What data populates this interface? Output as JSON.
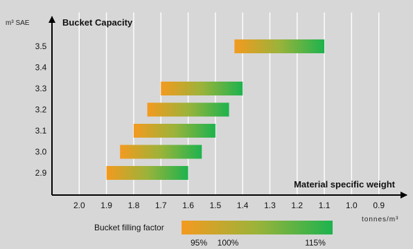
{
  "chart_data": {
    "type": "bar",
    "orientation": "horizontal-range",
    "title": "Bucket Capacity",
    "ylabel": "m³ SAE",
    "xlabel": "Material specific weight",
    "x_unit": "tonnes/m³",
    "x_reversed": true,
    "xlim": [
      2.1,
      0.8
    ],
    "x_ticks": [
      {
        "value": 2.0,
        "label": "2.0"
      },
      {
        "value": 1.9,
        "label": "1.9"
      },
      {
        "value": 1.8,
        "label": "1.8"
      },
      {
        "value": 1.7,
        "label": "1.7"
      },
      {
        "value": 1.6,
        "label": "1.6"
      },
      {
        "value": 1.5,
        "label": "1.5"
      },
      {
        "value": 1.4,
        "label": "1.4"
      },
      {
        "value": 1.3,
        "label": "1.3"
      },
      {
        "value": 1.2,
        "label": "1.2"
      },
      {
        "value": 1.1,
        "label": "1.1"
      },
      {
        "value": 1.0,
        "label": "1.0"
      },
      {
        "value": 0.9,
        "label": "0.9"
      }
    ],
    "grid": "vertical",
    "categories": [
      "3.5",
      "3.4",
      "3.3",
      "3.2",
      "3.1",
      "3.0",
      "2.9"
    ],
    "ranges": [
      {
        "capacity": "3.5",
        "from": 1.43,
        "to": 1.1
      },
      {
        "capacity": "3.4",
        "from": null,
        "to": null
      },
      {
        "capacity": "3.3",
        "from": 1.7,
        "to": 1.4
      },
      {
        "capacity": "3.2",
        "from": 1.75,
        "to": 1.45
      },
      {
        "capacity": "3.1",
        "from": 1.8,
        "to": 1.5
      },
      {
        "capacity": "3.0",
        "from": 1.85,
        "to": 1.55
      },
      {
        "capacity": "2.9",
        "from": 1.9,
        "to": 1.6
      }
    ],
    "legend": {
      "label": "Bucket filling factor",
      "colors": {
        "start": "#f39a1f",
        "mid": "#9bb33a",
        "end": "#1db34e"
      },
      "markers": [
        {
          "value": 95,
          "label": "95%"
        },
        {
          "value": 100,
          "label": "100%"
        },
        {
          "value": 115,
          "label": "115%"
        }
      ]
    },
    "colors": {
      "plot_background": "#d7d7d7",
      "grid": "#ffffff",
      "axis": "#000000"
    }
  }
}
